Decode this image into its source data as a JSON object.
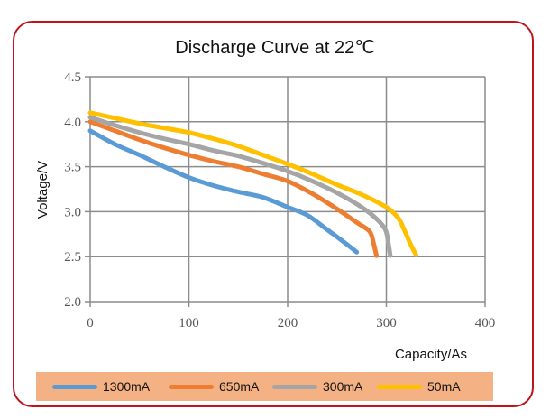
{
  "chart_data": {
    "type": "line",
    "title": "Discharge Curve at 22℃",
    "xlabel": "Capacity/As",
    "ylabel": "Voltage/V",
    "xlim": [
      0,
      400
    ],
    "ylim": [
      2.0,
      4.5
    ],
    "xticks": [
      0,
      100,
      200,
      300,
      400
    ],
    "yticks": [
      2.0,
      2.5,
      3.0,
      3.5,
      4.0,
      4.5
    ],
    "xtick_labels": [
      "0",
      "100",
      "200",
      "300",
      "400"
    ],
    "ytick_labels": [
      "2.0",
      "2.5",
      "3.0",
      "3.5",
      "4.0",
      "4.5"
    ],
    "grid": true,
    "legend_position": "bottom",
    "series": [
      {
        "name": "1300mA",
        "color": "#5b9bd5",
        "points": [
          [
            0,
            3.9
          ],
          [
            25,
            3.75
          ],
          [
            50,
            3.63
          ],
          [
            75,
            3.5
          ],
          [
            100,
            3.38
          ],
          [
            125,
            3.29
          ],
          [
            150,
            3.22
          ],
          [
            175,
            3.16
          ],
          [
            200,
            3.05
          ],
          [
            220,
            2.96
          ],
          [
            240,
            2.8
          ],
          [
            256,
            2.67
          ],
          [
            270,
            2.55
          ]
        ]
      },
      {
        "name": "650mA",
        "color": "#ed7d31",
        "points": [
          [
            0,
            4.0
          ],
          [
            25,
            3.9
          ],
          [
            50,
            3.8
          ],
          [
            75,
            3.71
          ],
          [
            100,
            3.63
          ],
          [
            125,
            3.56
          ],
          [
            150,
            3.5
          ],
          [
            175,
            3.42
          ],
          [
            200,
            3.34
          ],
          [
            225,
            3.2
          ],
          [
            250,
            3.03
          ],
          [
            270,
            2.88
          ],
          [
            283,
            2.78
          ],
          [
            287,
            2.65
          ],
          [
            290,
            2.51
          ]
        ]
      },
      {
        "name": "300mA",
        "color": "#a5a5a5",
        "points": [
          [
            0,
            4.05
          ],
          [
            25,
            3.96
          ],
          [
            50,
            3.88
          ],
          [
            75,
            3.81
          ],
          [
            100,
            3.75
          ],
          [
            125,
            3.68
          ],
          [
            150,
            3.62
          ],
          [
            175,
            3.54
          ],
          [
            200,
            3.45
          ],
          [
            225,
            3.34
          ],
          [
            250,
            3.21
          ],
          [
            275,
            3.05
          ],
          [
            290,
            2.92
          ],
          [
            299,
            2.8
          ],
          [
            302,
            2.65
          ],
          [
            304,
            2.51
          ]
        ]
      },
      {
        "name": "50mA",
        "color": "#ffc000",
        "points": [
          [
            0,
            4.1
          ],
          [
            25,
            4.04
          ],
          [
            50,
            3.98
          ],
          [
            75,
            3.93
          ],
          [
            100,
            3.88
          ],
          [
            125,
            3.81
          ],
          [
            150,
            3.73
          ],
          [
            175,
            3.63
          ],
          [
            200,
            3.53
          ],
          [
            225,
            3.42
          ],
          [
            250,
            3.3
          ],
          [
            275,
            3.19
          ],
          [
            300,
            3.05
          ],
          [
            312,
            2.93
          ],
          [
            318,
            2.8
          ],
          [
            324,
            2.65
          ],
          [
            330,
            2.52
          ]
        ]
      }
    ]
  },
  "legend": {
    "items": [
      {
        "label": "1300mA",
        "color": "#5b9bd5"
      },
      {
        "label": "650mA",
        "color": "#ed7d31"
      },
      {
        "label": "300mA",
        "color": "#a5a5a5"
      },
      {
        "label": "50mA",
        "color": "#ffc000"
      }
    ]
  },
  "colors": {
    "frame_border": "#c0141c",
    "legend_background": "#f4b183",
    "grid": "#8c8c8c"
  }
}
